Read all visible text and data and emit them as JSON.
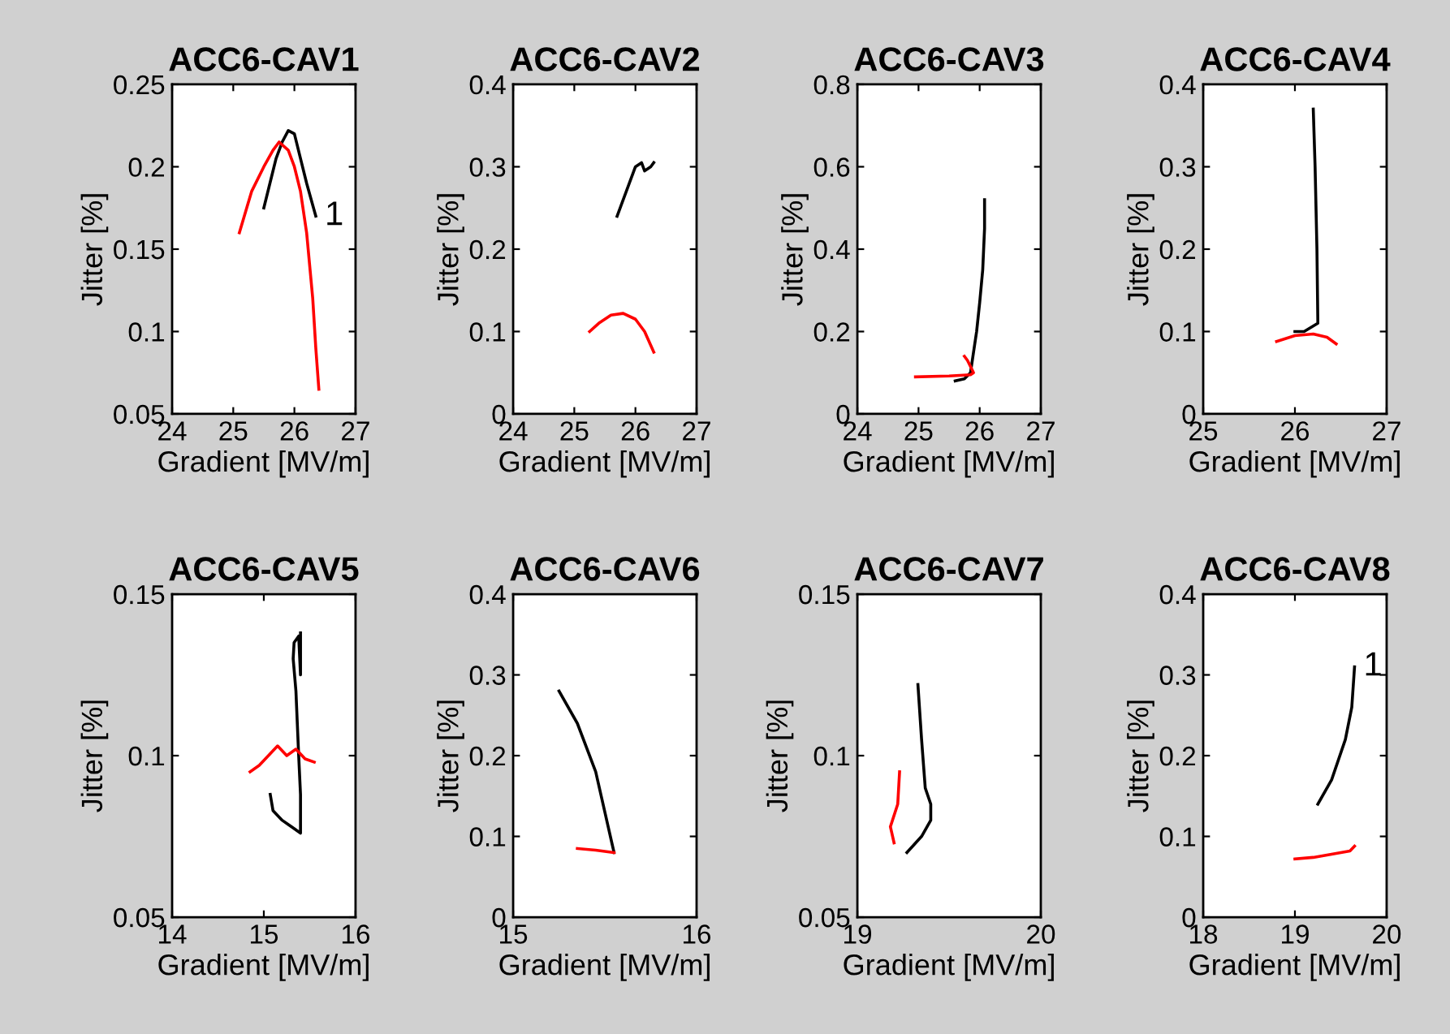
{
  "chart_data": [
    {
      "type": "line",
      "title": "ACC6-CAV1",
      "xlabel": "Gradient [MV/m]",
      "ylabel": "Jitter [%]",
      "xlim": [
        24,
        27
      ],
      "ylim": [
        0.05,
        0.25
      ],
      "xticks": [
        24,
        25,
        26,
        27
      ],
      "yticks": [
        0.05,
        0.1,
        0.15,
        0.2,
        0.25
      ],
      "annotations": [
        "1"
      ],
      "series": [
        {
          "color": "#000000",
          "x": [
            25.5,
            25.6,
            25.7,
            25.8,
            25.9,
            26.0,
            26.1,
            26.2,
            26.35
          ],
          "values": [
            0.175,
            0.19,
            0.205,
            0.215,
            0.222,
            0.22,
            0.205,
            0.19,
            0.17
          ]
        },
        {
          "color": "#ff0000",
          "x": [
            25.1,
            25.3,
            25.5,
            25.65,
            25.75,
            25.9,
            26.0,
            26.1,
            26.2,
            26.3,
            26.35,
            26.4
          ],
          "values": [
            0.16,
            0.185,
            0.2,
            0.21,
            0.215,
            0.21,
            0.2,
            0.185,
            0.16,
            0.12,
            0.09,
            0.065
          ]
        }
      ]
    },
    {
      "type": "line",
      "title": "ACC6-CAV2",
      "xlabel": "Gradient [MV/m]",
      "ylabel": "Jitter [%]",
      "xlim": [
        24,
        27
      ],
      "ylim": [
        0,
        0.4
      ],
      "xticks": [
        24,
        25,
        26,
        27
      ],
      "yticks": [
        0,
        0.1,
        0.2,
        0.3,
        0.4
      ],
      "series": [
        {
          "color": "#000000",
          "x": [
            25.7,
            25.85,
            26.0,
            26.1,
            26.15,
            26.25,
            26.3
          ],
          "values": [
            0.24,
            0.27,
            0.3,
            0.305,
            0.295,
            0.3,
            0.305
          ]
        },
        {
          "color": "#ff0000",
          "x": [
            25.25,
            25.4,
            25.6,
            25.8,
            26.0,
            26.15,
            26.3
          ],
          "values": [
            0.1,
            0.11,
            0.12,
            0.122,
            0.115,
            0.1,
            0.075
          ]
        }
      ]
    },
    {
      "type": "line",
      "title": "ACC6-CAV3",
      "xlabel": "Gradient [MV/m]",
      "ylabel": "Jitter [%]",
      "xlim": [
        24,
        27
      ],
      "ylim": [
        0,
        0.8
      ],
      "xticks": [
        24,
        25,
        26,
        27
      ],
      "yticks": [
        0,
        0.2,
        0.4,
        0.6,
        0.8
      ],
      "series": [
        {
          "color": "#000000",
          "x": [
            25.6,
            25.75,
            25.85,
            25.9,
            25.95,
            26.0,
            26.05,
            26.08,
            26.08
          ],
          "values": [
            0.08,
            0.085,
            0.1,
            0.15,
            0.2,
            0.27,
            0.35,
            0.45,
            0.52
          ]
        },
        {
          "color": "#ff0000",
          "x": [
            24.95,
            25.5,
            25.85,
            25.9,
            25.8,
            25.75
          ],
          "values": [
            0.09,
            0.092,
            0.095,
            0.1,
            0.13,
            0.14
          ]
        }
      ]
    },
    {
      "type": "line",
      "title": "ACC6-CAV4",
      "xlabel": "Gradient [MV/m]",
      "ylabel": "Jitter [%]",
      "xlim": [
        25,
        27
      ],
      "ylim": [
        0,
        0.4
      ],
      "xticks": [
        25,
        26,
        27
      ],
      "yticks": [
        0,
        0.1,
        0.2,
        0.3,
        0.4
      ],
      "series": [
        {
          "color": "#000000",
          "x": [
            26.2,
            26.22,
            26.24,
            26.25,
            26.1,
            26.0
          ],
          "values": [
            0.37,
            0.3,
            0.2,
            0.11,
            0.1,
            0.1
          ]
        },
        {
          "color": "#ff0000",
          "x": [
            25.8,
            26.0,
            26.2,
            26.35,
            26.45
          ],
          "values": [
            0.088,
            0.095,
            0.097,
            0.093,
            0.085
          ]
        }
      ]
    },
    {
      "type": "line",
      "title": "ACC6-CAV5",
      "xlabel": "Gradient [MV/m]",
      "ylabel": "Jitter [%]",
      "xlim": [
        14,
        16
      ],
      "ylim": [
        0.05,
        0.15
      ],
      "xticks": [
        14,
        15,
        16
      ],
      "yticks": [
        0.05,
        0.1,
        0.15
      ],
      "series": [
        {
          "color": "#000000",
          "x": [
            15.07,
            15.1,
            15.2,
            15.3,
            15.4,
            15.4,
            15.38,
            15.35,
            15.32,
            15.33,
            15.38,
            15.4,
            15.4
          ],
          "values": [
            0.088,
            0.083,
            0.08,
            0.078,
            0.076,
            0.088,
            0.1,
            0.12,
            0.13,
            0.135,
            0.137,
            0.125,
            0.138
          ]
        },
        {
          "color": "#ff0000",
          "x": [
            14.85,
            14.95,
            15.05,
            15.15,
            15.25,
            15.35,
            15.45,
            15.55
          ],
          "values": [
            0.095,
            0.097,
            0.1,
            0.103,
            0.1,
            0.102,
            0.099,
            0.098
          ]
        }
      ]
    },
    {
      "type": "line",
      "title": "ACC6-CAV6",
      "xlabel": "Gradient [MV/m]",
      "ylabel": "Jitter [%]",
      "xlim": [
        15,
        16
      ],
      "ylim": [
        0,
        0.4
      ],
      "xticks": [
        15,
        16
      ],
      "yticks": [
        0,
        0.1,
        0.2,
        0.3,
        0.4
      ],
      "series": [
        {
          "color": "#000000",
          "x": [
            15.25,
            15.35,
            15.45,
            15.5,
            15.54,
            15.55
          ],
          "values": [
            0.28,
            0.24,
            0.18,
            0.13,
            0.09,
            0.08
          ]
        },
        {
          "color": "#ff0000",
          "x": [
            15.35,
            15.45,
            15.55
          ],
          "values": [
            0.085,
            0.083,
            0.08
          ]
        }
      ]
    },
    {
      "type": "line",
      "title": "ACC6-CAV7",
      "xlabel": "Gradient [MV/m]",
      "ylabel": "Jitter [%]",
      "xlim": [
        19,
        20
      ],
      "ylim": [
        0.05,
        0.15
      ],
      "xticks": [
        19,
        20
      ],
      "yticks": [
        0.05,
        0.1,
        0.15
      ],
      "series": [
        {
          "color": "#000000",
          "x": [
            19.33,
            19.35,
            19.37,
            19.4,
            19.4,
            19.35,
            19.27
          ],
          "values": [
            0.122,
            0.105,
            0.09,
            0.085,
            0.08,
            0.075,
            0.07
          ]
        },
        {
          "color": "#ff0000",
          "x": [
            19.23,
            19.22,
            19.18,
            19.2
          ],
          "values": [
            0.095,
            0.085,
            0.078,
            0.073
          ]
        }
      ]
    },
    {
      "type": "line",
      "title": "ACC6-CAV8",
      "xlabel": "Gradient [MV/m]",
      "ylabel": "Jitter [%]",
      "xlim": [
        18,
        20
      ],
      "ylim": [
        0,
        0.4
      ],
      "xticks": [
        18,
        19,
        20
      ],
      "yticks": [
        0,
        0.1,
        0.2,
        0.3,
        0.4
      ],
      "annotations": [
        "1"
      ],
      "series": [
        {
          "color": "#000000",
          "x": [
            19.25,
            19.4,
            19.55,
            19.62,
            19.65
          ],
          "values": [
            0.14,
            0.17,
            0.22,
            0.26,
            0.31
          ]
        },
        {
          "color": "#ff0000",
          "x": [
            19.0,
            19.2,
            19.4,
            19.6,
            19.65
          ],
          "values": [
            0.072,
            0.074,
            0.078,
            0.082,
            0.088
          ]
        }
      ]
    }
  ]
}
